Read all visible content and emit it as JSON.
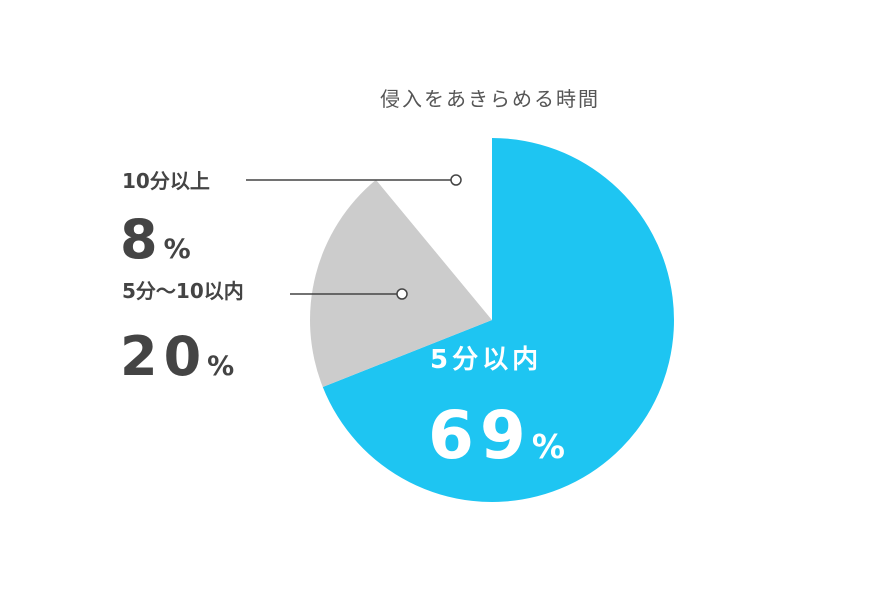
{
  "chart_data": {
    "type": "pie",
    "title": "侵入をあきらめる時間",
    "categories": [
      "5分以内",
      "5分〜10以内",
      "10分以上"
    ],
    "values": [
      69,
      20,
      8
    ],
    "value_labels": [
      "69%",
      "20%",
      "8%"
    ],
    "colors": [
      "#1ec5f2",
      "#cccccc",
      "#ffffff"
    ]
  }
}
